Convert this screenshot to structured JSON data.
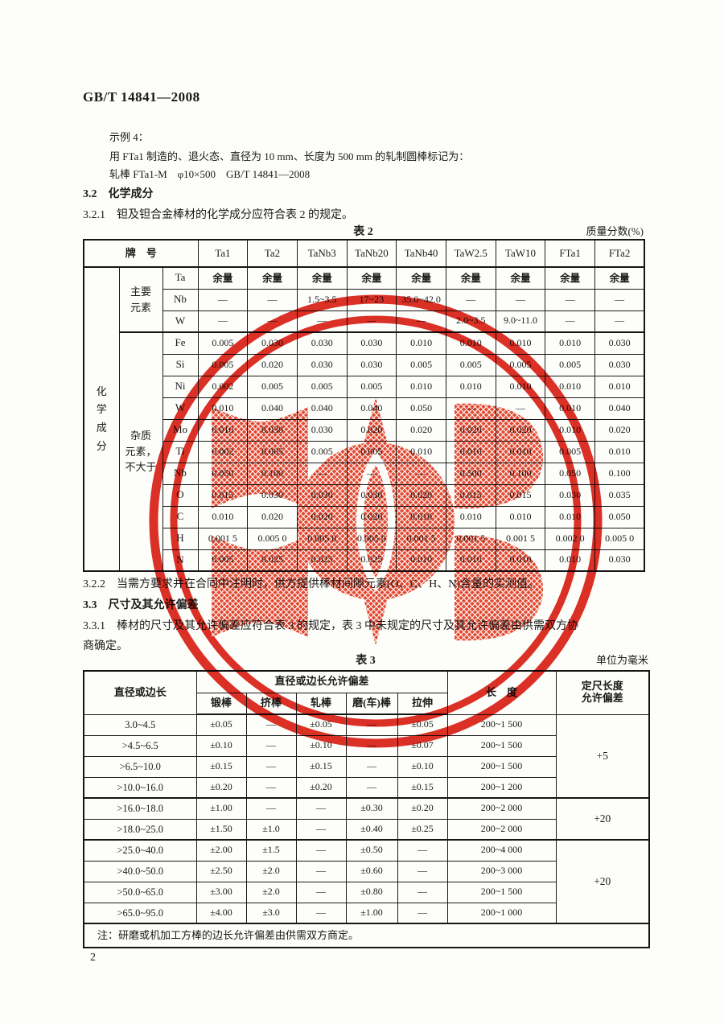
{
  "page": {
    "number": "2"
  },
  "header": {
    "standard_no": "GB/T 14841—2008"
  },
  "example": {
    "label": "示例 4：",
    "line1": "用 FTa1 制造的、退火态、直径为 10 mm、长度为 500 mm 的轧制圆棒标记为：",
    "line2": "轧棒 FTa1-M　φ10×500　GB/T 14841—2008"
  },
  "sections": {
    "s32": "3.2　化学成分",
    "s321": "3.2.1　钽及钽合金棒材的化学成分应符合表 2 的规定。",
    "s322": "3.2.2　当需方要求并在合同中注明时，供方提供棒材间隙元素(O、C、H、N)含量的实测值。",
    "s33": "3.3　尺寸及其允许偏差",
    "s331": "3.3.1　棒材的尺寸及其允许偏差应符合表 3 的规定，表 3 中未规定的尺寸及其允许偏差由供需双方协\n商确定。"
  },
  "table2": {
    "caption": "表 2",
    "unit_note": "质量分数(%)",
    "corner_label": "牌　号",
    "grades": [
      "Ta1",
      "Ta2",
      "TaNb3",
      "TaNb20",
      "TaNb40",
      "TaW2.5",
      "TaW10",
      "FTa1",
      "FTa2"
    ],
    "row_group_label": "化学成分",
    "main_group_label": "主要\n元素",
    "impurity_group_label": "杂质\n元素，\n不大于",
    "main_rows": [
      {
        "element": "Ta",
        "values": [
          "余量",
          "余量",
          "余量",
          "余量",
          "余量",
          "余量",
          "余量",
          "余量",
          "余量"
        ]
      },
      {
        "element": "Nb",
        "values": [
          "—",
          "—",
          "1.5~3.5",
          "17~23",
          "35.0~42.0",
          "—",
          "—",
          "—",
          "—"
        ]
      },
      {
        "element": "W",
        "values": [
          "—",
          "—",
          "—",
          "—",
          "—",
          "2.0~3.5",
          "9.0~11.0",
          "—",
          "—"
        ]
      }
    ],
    "impurity_rows": [
      {
        "element": "Fe",
        "values": [
          "0.005",
          "0.030",
          "0.030",
          "0.030",
          "0.010",
          "0.010",
          "0.010",
          "0.010",
          "0.030"
        ]
      },
      {
        "element": "Si",
        "values": [
          "0.005",
          "0.020",
          "0.030",
          "0.030",
          "0.005",
          "0.005",
          "0.005",
          "0.005",
          "0.030"
        ]
      },
      {
        "element": "Ni",
        "values": [
          "0.002",
          "0.005",
          "0.005",
          "0.005",
          "0.010",
          "0.010",
          "0.010",
          "0.010",
          "0.010"
        ]
      },
      {
        "element": "W",
        "values": [
          "0.010",
          "0.040",
          "0.040",
          "0.040",
          "0.050",
          "—",
          "—",
          "0.010",
          "0.040"
        ]
      },
      {
        "element": "Mo",
        "values": [
          "0.010",
          "0.030",
          "0.030",
          "0.020",
          "0.020",
          "0.020",
          "0.020",
          "0.010",
          "0.020"
        ]
      },
      {
        "element": "Ti",
        "values": [
          "0.002",
          "0.005",
          "0.005",
          "0.005",
          "0.010",
          "0.010",
          "0.010",
          "0.005",
          "0.010"
        ]
      },
      {
        "element": "Nb",
        "values": [
          "0.050",
          "0.100",
          "—",
          "—",
          "—",
          "0.500",
          "0.100",
          "0.050",
          "0.100"
        ]
      },
      {
        "element": "O",
        "values": [
          "0.015",
          "0.030",
          "0.030",
          "0.030",
          "0.020",
          "0.015",
          "0.015",
          "0.030",
          "0.035"
        ]
      },
      {
        "element": "C",
        "values": [
          "0.010",
          "0.020",
          "0.020",
          "0.020",
          "0.010",
          "0.010",
          "0.010",
          "0.010",
          "0.050"
        ]
      },
      {
        "element": "H",
        "values": [
          "0.001 5",
          "0.005 0",
          "0.005 0",
          "0.005 0",
          "0.001 5",
          "0.001 5",
          "0.001 5",
          "0.002 0",
          "0.005 0"
        ]
      },
      {
        "element": "N",
        "values": [
          "0.005",
          "0.025",
          "0.025",
          "0.025",
          "0.010",
          "0.010",
          "0.010",
          "0.010",
          "0.030"
        ]
      }
    ]
  },
  "table3": {
    "caption": "表 3",
    "unit_note": "单位为毫米",
    "col_diameter": "直径或边长",
    "col_tolerance_group": "直径或边长允许偏差",
    "sub_cols": [
      "锻棒",
      "挤棒",
      "轧棒",
      "磨(车)棒",
      "拉伸"
    ],
    "col_length": "长　度",
    "col_fixed_length": "定尺长度\n允许偏差",
    "rows": [
      {
        "size": "3.0~4.5",
        "values": [
          "±0.05",
          "—",
          "±0.05",
          "—",
          "±0.05"
        ],
        "length": "200~1 500"
      },
      {
        "size": ">4.5~6.5",
        "values": [
          "±0.10",
          "—",
          "±0.10",
          "—",
          "±0.07"
        ],
        "length": "200~1 500"
      },
      {
        "size": ">6.5~10.0",
        "values": [
          "±0.15",
          "—",
          "±0.15",
          "—",
          "±0.10"
        ],
        "length": "200~1 500"
      },
      {
        "size": ">10.0~16.0",
        "values": [
          "±0.20",
          "—",
          "±0.20",
          "—",
          "±0.15"
        ],
        "length": "200~1 200"
      },
      {
        "size": ">16.0~18.0",
        "values": [
          "±1.00",
          "—",
          "—",
          "±0.30",
          "±0.20"
        ],
        "length": "200~2 000"
      },
      {
        "size": ">18.0~25.0",
        "values": [
          "±1.50",
          "±1.0",
          "—",
          "±0.40",
          "±0.25"
        ],
        "length": "200~2 000"
      },
      {
        "size": ">25.0~40.0",
        "values": [
          "±2.00",
          "±1.5",
          "—",
          "±0.50",
          "—"
        ],
        "length": "200~4 000"
      },
      {
        "size": ">40.0~50.0",
        "values": [
          "±2.50",
          "±2.0",
          "—",
          "±0.60",
          "—"
        ],
        "length": "200~3 000"
      },
      {
        "size": ">50.0~65.0",
        "values": [
          "±3.00",
          "±2.0",
          "—",
          "±0.80",
          "—"
        ],
        "length": "200~1 500"
      },
      {
        "size": ">65.0~95.0",
        "values": [
          "±4.00",
          "±3.0",
          "—",
          "±1.00",
          "—"
        ],
        "length": "200~1 000"
      }
    ],
    "fixed_length_groups": [
      {
        "label": "+5",
        "span": 4
      },
      {
        "label": "+20",
        "span": 2
      },
      {
        "label": "+20",
        "span": 4
      }
    ],
    "note": "注：研磨或机加工方棒的边长允许偏差由供需双方商定。"
  },
  "stamp": {
    "ring_color": "#dc2419",
    "hatch_color": "#e33f28"
  }
}
